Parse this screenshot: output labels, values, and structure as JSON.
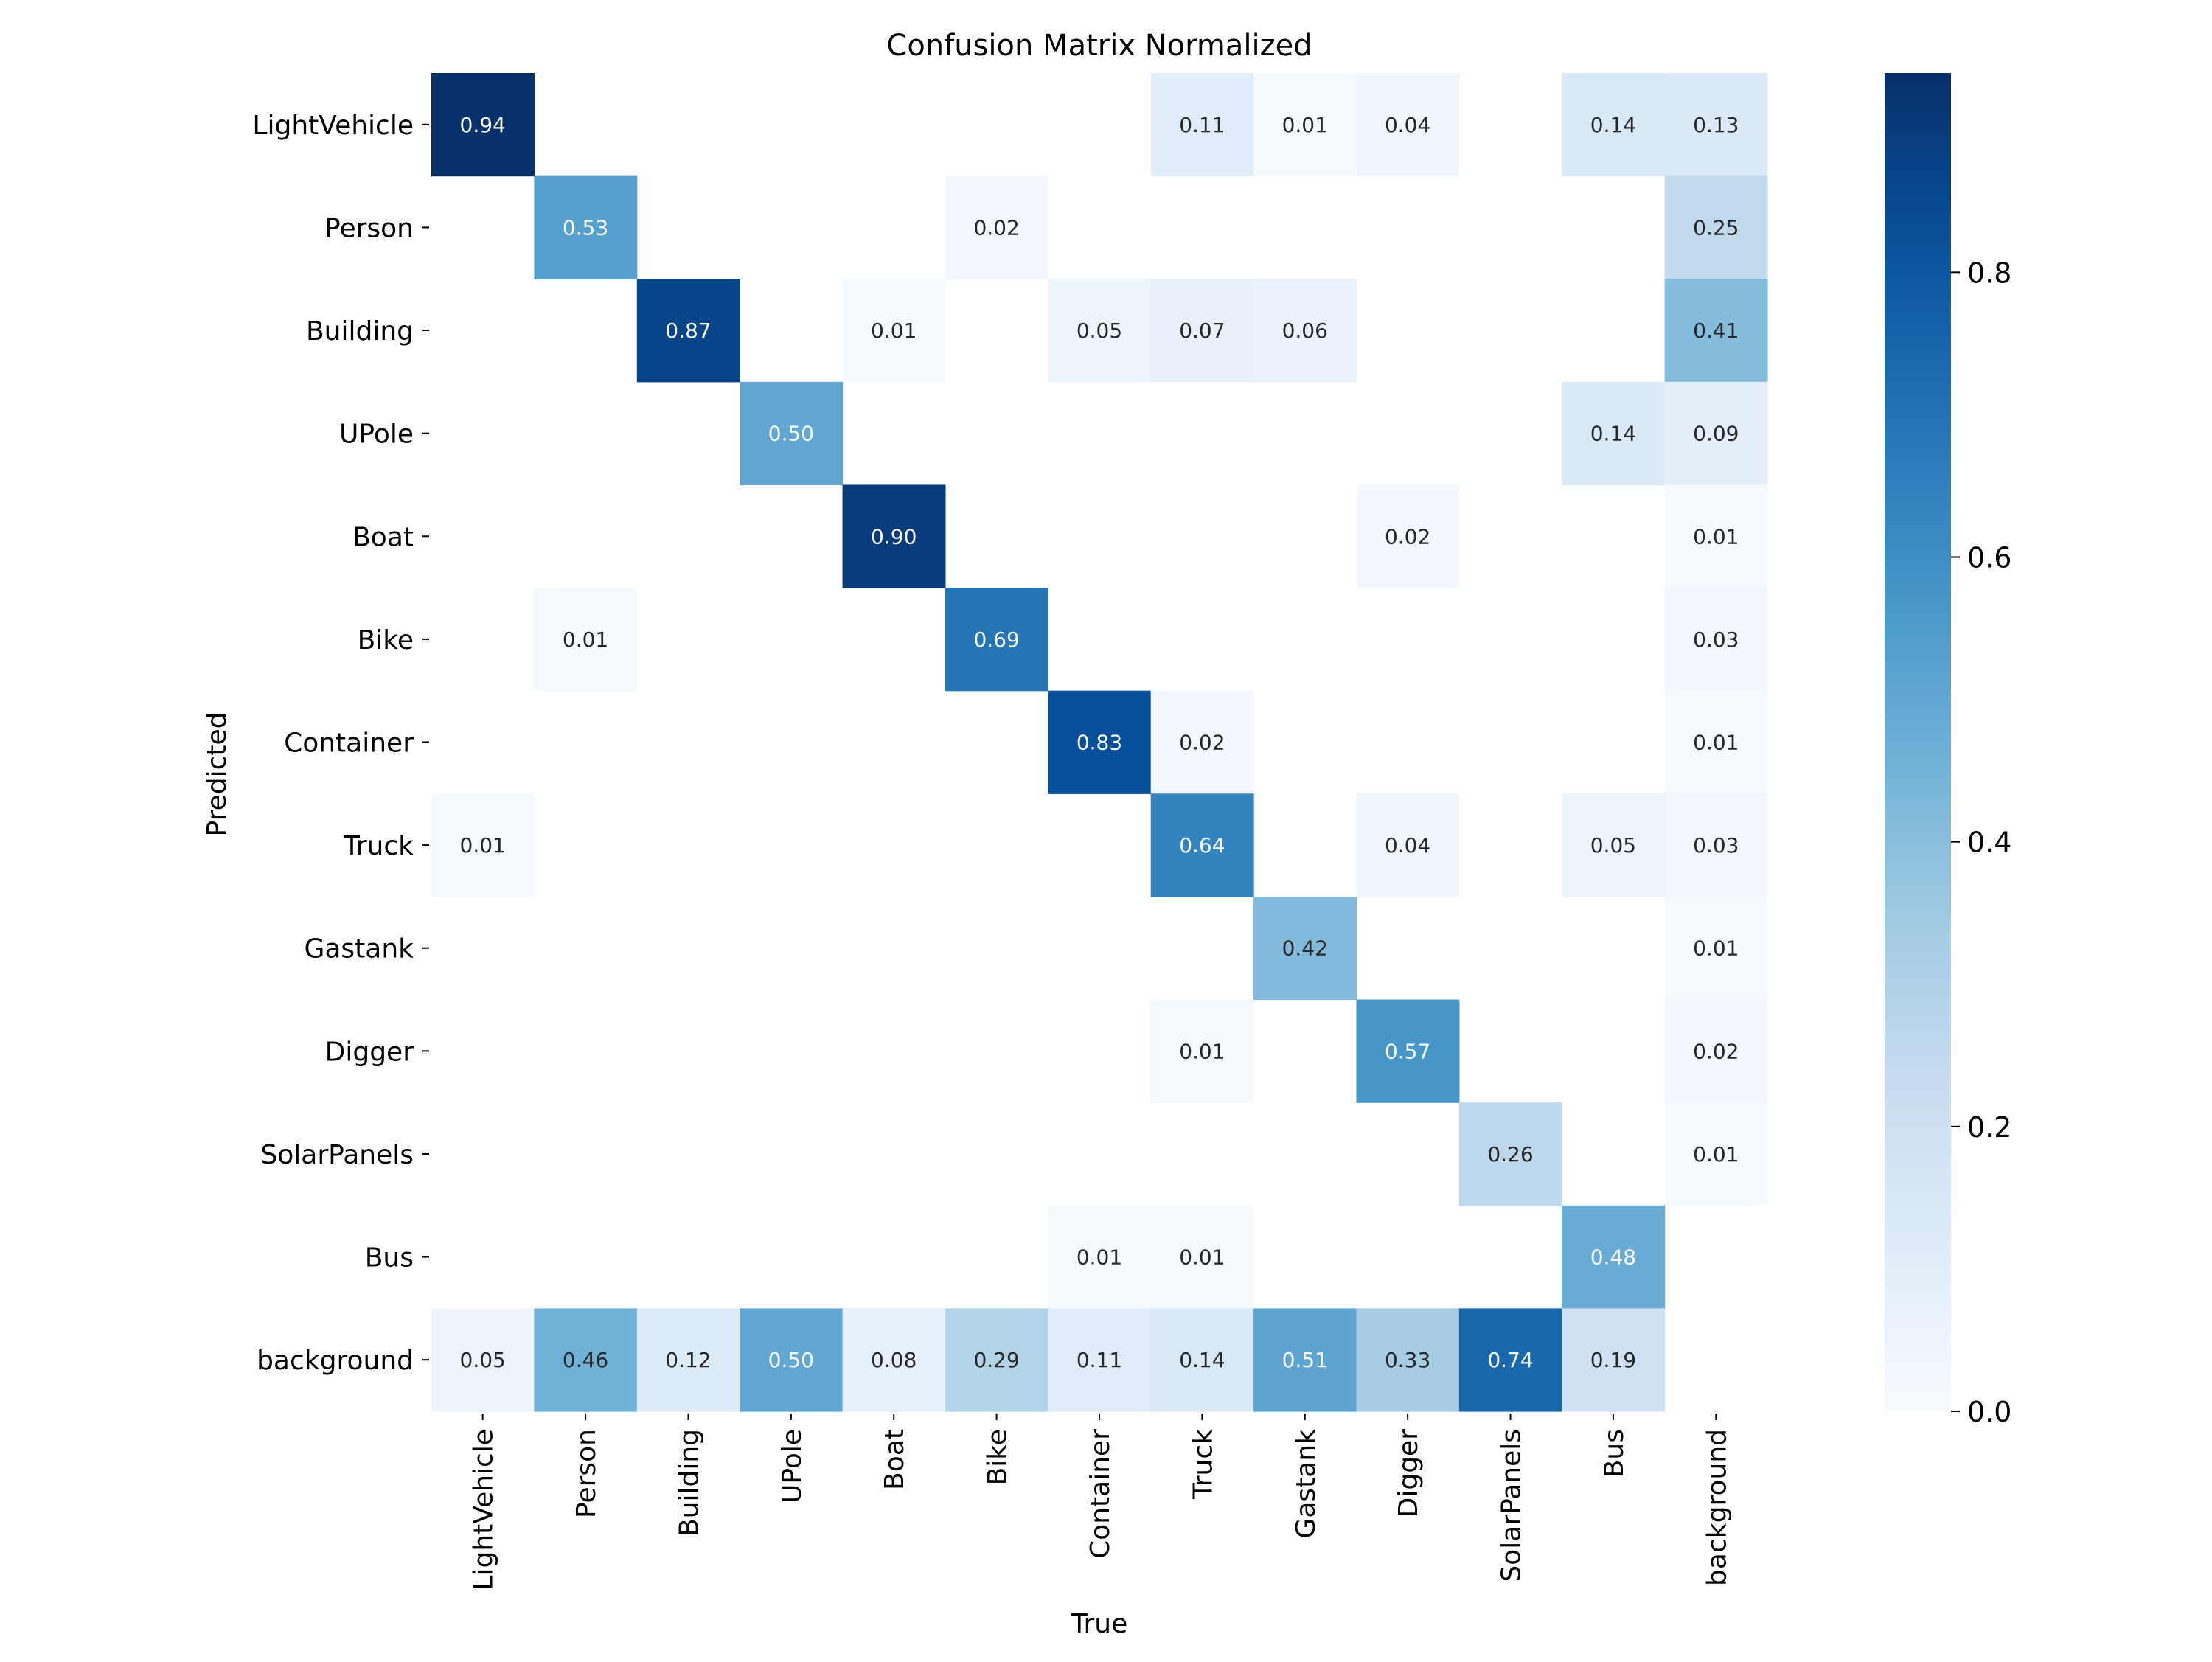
{
  "chart_data": {
    "type": "heatmap",
    "title": "Confusion Matrix Normalized",
    "xlabel": "True",
    "ylabel": "Predicted",
    "x_categories": [
      "LightVehicle",
      "Person",
      "Building",
      "UPole",
      "Boat",
      "Bike",
      "Container",
      "Truck",
      "Gastank",
      "Digger",
      "SolarPanels",
      "Bus",
      "background"
    ],
    "y_categories": [
      "LightVehicle",
      "Person",
      "Building",
      "UPole",
      "Boat",
      "Bike",
      "Container",
      "Truck",
      "Gastank",
      "Digger",
      "SolarPanels",
      "Bus",
      "background"
    ],
    "values": [
      [
        0.94,
        null,
        null,
        null,
        null,
        null,
        null,
        0.11,
        0.01,
        0.04,
        null,
        0.14,
        0.13
      ],
      [
        null,
        0.53,
        null,
        null,
        null,
        0.02,
        null,
        null,
        null,
        null,
        null,
        null,
        0.25
      ],
      [
        null,
        null,
        0.87,
        null,
        0.01,
        null,
        0.05,
        0.07,
        0.06,
        null,
        null,
        null,
        0.41
      ],
      [
        null,
        null,
        null,
        0.5,
        null,
        null,
        null,
        null,
        null,
        null,
        null,
        0.14,
        0.09
      ],
      [
        null,
        null,
        null,
        null,
        0.9,
        null,
        null,
        null,
        null,
        0.02,
        null,
        null,
        0.01
      ],
      [
        null,
        0.01,
        null,
        null,
        null,
        0.69,
        null,
        null,
        null,
        null,
        null,
        null,
        0.03
      ],
      [
        null,
        null,
        null,
        null,
        null,
        null,
        0.83,
        0.02,
        null,
        null,
        null,
        null,
        0.01
      ],
      [
        0.01,
        null,
        null,
        null,
        null,
        null,
        null,
        0.64,
        null,
        0.04,
        null,
        0.05,
        0.03
      ],
      [
        null,
        null,
        null,
        null,
        null,
        null,
        null,
        null,
        0.42,
        null,
        null,
        null,
        0.01
      ],
      [
        null,
        null,
        null,
        null,
        null,
        null,
        null,
        0.01,
        null,
        0.57,
        null,
        null,
        0.02
      ],
      [
        null,
        null,
        null,
        null,
        null,
        null,
        null,
        null,
        null,
        null,
        0.26,
        null,
        0.01
      ],
      [
        null,
        null,
        null,
        null,
        null,
        null,
        0.01,
        0.01,
        null,
        null,
        null,
        0.48,
        null
      ],
      [
        0.05,
        0.46,
        0.12,
        0.5,
        0.08,
        0.29,
        0.11,
        0.14,
        0.51,
        0.33,
        0.74,
        0.19,
        null
      ]
    ],
    "colorbar": {
      "vmin": 0.0,
      "vmax": 0.94,
      "ticks": [
        0.0,
        0.2,
        0.4,
        0.6,
        0.8
      ],
      "tick_labels": [
        "0.0",
        "0.2",
        "0.4",
        "0.6",
        "0.8"
      ],
      "colormap": "Blues"
    },
    "value_format": "2-decimal",
    "colors": {
      "background": "#ffffff",
      "text_dark": "#262626",
      "text_light": "#ffffff",
      "axis": "#000000"
    }
  }
}
